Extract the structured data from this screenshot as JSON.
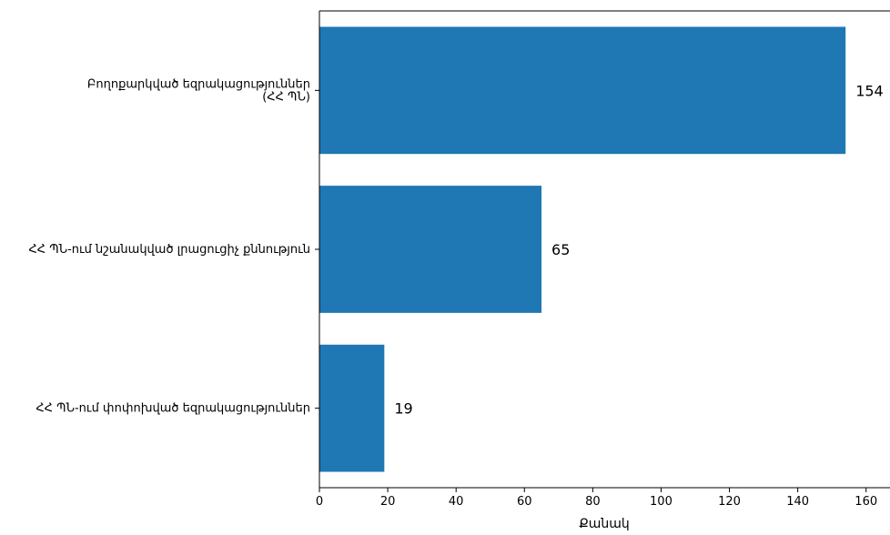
{
  "chart_data": {
    "type": "bar",
    "orientation": "horizontal",
    "categories": [
      "Բողոքարկված եզրակացություններ\n(ՀՀ ՊՆ)",
      "ՀՀ ՊՆ-ում նշանակված լրացուցիչ քննություն",
      "ՀՀ ՊՆ-ում փոփոխված եզրակացություններ"
    ],
    "values": [
      154,
      65,
      19
    ],
    "data_labels": [
      "154",
      "65",
      "19"
    ],
    "title": "",
    "xlabel": "Քանակ",
    "ylabel": "",
    "xlim": [
      0,
      167
    ],
    "xticks": [
      0,
      20,
      40,
      60,
      80,
      100,
      120,
      140,
      160
    ],
    "grid": false,
    "bar_color": "#1f77b4"
  }
}
